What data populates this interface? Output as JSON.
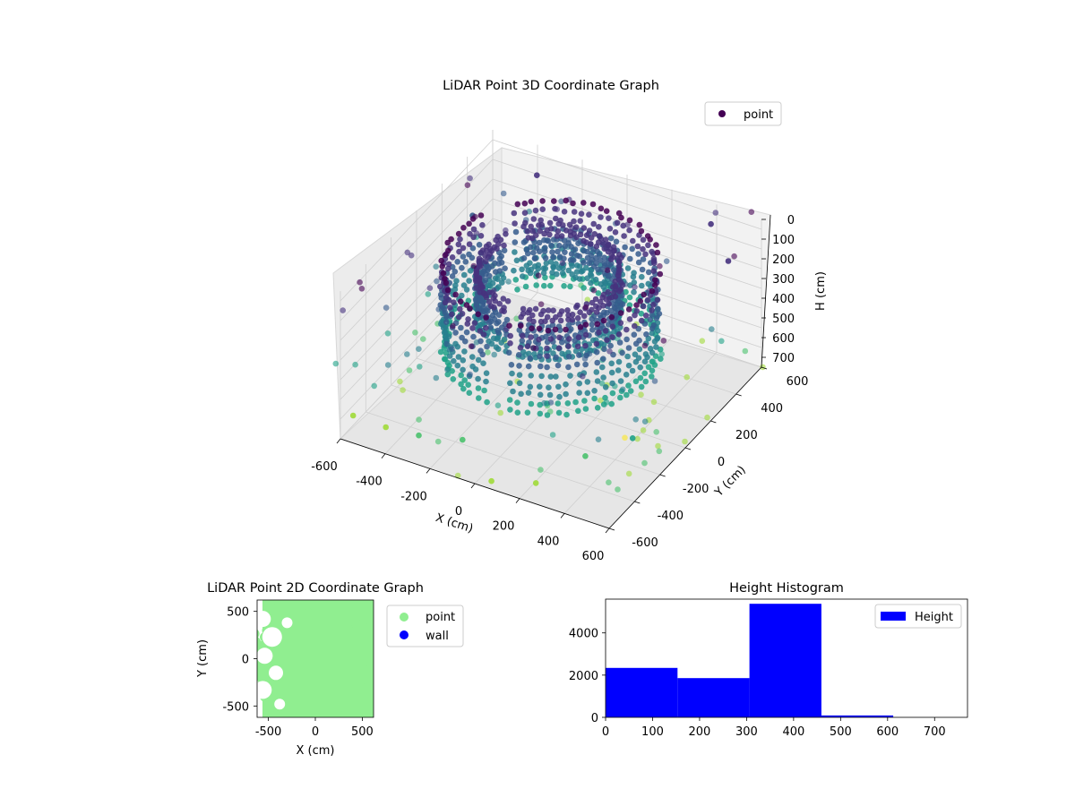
{
  "chart_data": [
    {
      "type": "scatter",
      "projection": "3d",
      "title": "LiDAR Point 3D Coordinate Graph",
      "xlabel": "X (cm)",
      "ylabel": "Y (cm)",
      "zlabel": "H (cm)",
      "xlim": [
        -600,
        600
      ],
      "ylim": [
        -600,
        600
      ],
      "zlim": [
        0,
        750
      ],
      "z_inverted": true,
      "xticks": [
        "-600",
        "-400",
        "-200",
        "0",
        "200",
        "400",
        "600"
      ],
      "yticks": [
        "-600",
        "-400",
        "-200",
        "0",
        "200",
        "400",
        "600"
      ],
      "zticks": [
        "0",
        "100",
        "200",
        "300",
        "400",
        "500",
        "600",
        "700"
      ],
      "grid": true,
      "legend": {
        "placement": "top-right",
        "entries": [
          "point"
        ]
      },
      "colormap": "viridis (colored by height)",
      "series": [
        {
          "name": "point",
          "color": "#440154",
          "clusters": [
            {
              "shape": "ring wall",
              "center": [
                0,
                0
              ],
              "radius": 420,
              "h_range": [
                50,
                480
              ]
            },
            {
              "shape": "ring wall",
              "center": [
                -30,
                40
              ],
              "radius": 280,
              "h_range": [
                100,
                350
              ]
            },
            {
              "shape": "scattered outliers",
              "x_range": [
                -650,
                650
              ],
              "y_range": [
                -650,
                650
              ],
              "h_range": [
                0,
                750
              ]
            }
          ],
          "x": [
            -600,
            -420,
            -250,
            -100,
            80,
            250,
            420,
            580,
            -520,
            520,
            -380,
            380
          ],
          "y": [
            -500,
            -560,
            -600,
            -520,
            -610,
            -560,
            -470,
            -380,
            300,
            480,
            560,
            590
          ],
          "h": [
            700,
            650,
            600,
            620,
            700,
            680,
            540,
            450,
            200,
            160,
            120,
            100
          ]
        }
      ]
    },
    {
      "type": "scatter",
      "title": "LiDAR Point 2D Coordinate Graph",
      "xlabel": "X (cm)",
      "ylabel": "Y (cm)",
      "xlim": [
        -620,
        620
      ],
      "ylim": [
        -620,
        620
      ],
      "xticks": [
        "-500",
        "0",
        "500"
      ],
      "yticks": [
        "500",
        "0",
        "-500"
      ],
      "legend": {
        "placement": "right",
        "entries": [
          "point",
          "wall"
        ]
      },
      "series": [
        {
          "name": "point",
          "color": "#90ee90",
          "extent": "dense fill over x -620..620, y -620..620"
        },
        {
          "name": "wall",
          "color": "#0000ff",
          "points": []
        }
      ]
    },
    {
      "type": "bar",
      "title": "Height Histogram",
      "xlabel": "",
      "ylabel": "",
      "xlim": [
        0,
        770
      ],
      "ylim": [
        0,
        5600
      ],
      "xticks": [
        "0",
        "100",
        "200",
        "300",
        "400",
        "500",
        "600",
        "700"
      ],
      "yticks": [
        "0",
        "2000",
        "4000"
      ],
      "legend": {
        "placement": "top-right",
        "entries": [
          "Height"
        ]
      },
      "bins": [
        [
          0,
          153
        ],
        [
          153,
          306
        ],
        [
          306,
          459
        ],
        [
          459,
          612
        ],
        [
          612,
          765
        ]
      ],
      "series": [
        {
          "name": "Height",
          "color": "#0000ff",
          "values": [
            2340,
            1860,
            5380,
            90,
            0
          ]
        }
      ]
    }
  ]
}
